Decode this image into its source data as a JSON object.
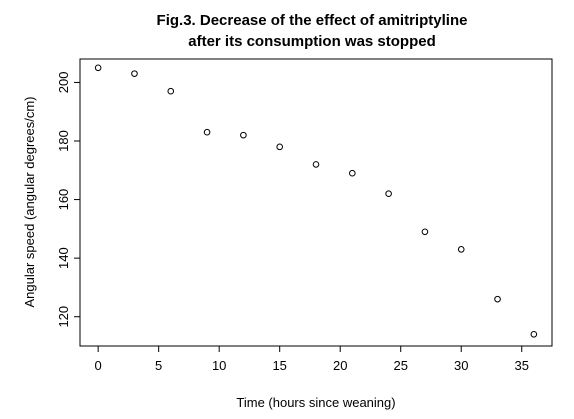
{
  "chart_data": {
    "type": "scatter",
    "title": [
      "Fig.3. Decrease of the effect of amitriptyline",
      "after its consumption was stopped"
    ],
    "xlabel": "Time (hours since weaning)",
    "ylabel": "Angular speed (angular degrees/cm)",
    "xlim": [
      -1.5,
      37.5
    ],
    "ylim": [
      110,
      208
    ],
    "xticks": [
      0,
      5,
      10,
      15,
      20,
      25,
      30,
      35
    ],
    "yticks": [
      120,
      140,
      160,
      180,
      200
    ],
    "grid": false,
    "marker": "open-circle",
    "series": [
      {
        "x": [
          0,
          3,
          6,
          9,
          12,
          15,
          18,
          21,
          24,
          27,
          30,
          33,
          36
        ],
        "y": [
          205,
          203,
          197,
          183,
          182,
          178,
          172,
          169,
          162,
          149,
          143,
          126,
          114
        ]
      }
    ]
  }
}
